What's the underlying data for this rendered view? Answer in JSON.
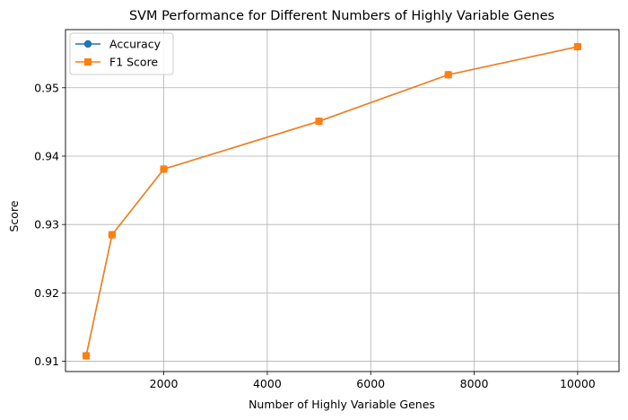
{
  "chart_data": {
    "type": "line",
    "title": "SVM Performance for Different Numbers of Highly Variable Genes",
    "xlabel": "Number of Highly Variable Genes",
    "ylabel": "Score",
    "xlim": [
      100,
      10800
    ],
    "ylim": [
      0.9085,
      0.9585
    ],
    "xticks": [
      2000,
      4000,
      6000,
      8000,
      10000
    ],
    "yticks": [
      0.91,
      0.92,
      0.93,
      0.94,
      0.95
    ],
    "xtick_labels": [
      "2000",
      "4000",
      "6000",
      "8000",
      "10000"
    ],
    "ytick_labels": [
      "0.91",
      "0.92",
      "0.93",
      "0.94",
      "0.95"
    ],
    "grid": true,
    "legend_position": "top-left",
    "x": [
      500,
      1000,
      2000,
      5000,
      7500,
      10000
    ],
    "series": [
      {
        "name": "Accuracy",
        "marker": "circle",
        "color": "#1f77b4",
        "values": [
          0.9108,
          0.9285,
          0.9381,
          0.9451,
          0.9519,
          0.956
        ]
      },
      {
        "name": "F1 Score",
        "marker": "square",
        "color": "#ff7f0e",
        "values": [
          0.9108,
          0.9285,
          0.9381,
          0.9451,
          0.9519,
          0.956
        ]
      }
    ]
  }
}
